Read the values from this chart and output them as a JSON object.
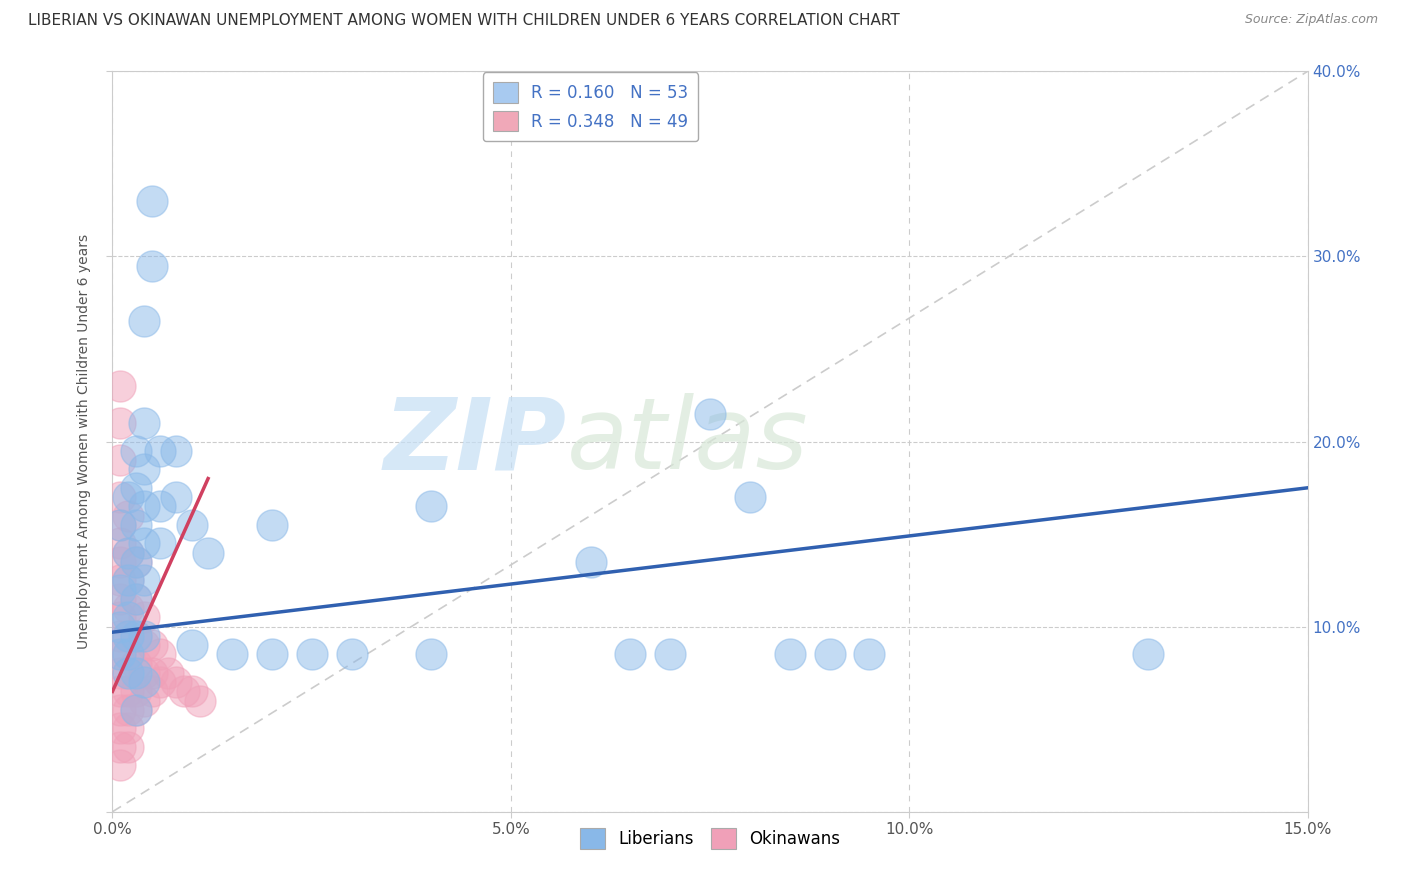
{
  "title": "LIBERIAN VS OKINAWAN UNEMPLOYMENT AMONG WOMEN WITH CHILDREN UNDER 6 YEARS CORRELATION CHART",
  "source": "Source: ZipAtlas.com",
  "ylabel": "Unemployment Among Women with Children Under 6 years",
  "xlim": [
    0,
    0.15
  ],
  "ylim": [
    0,
    0.4
  ],
  "xticks": [
    0.0,
    0.05,
    0.1,
    0.15
  ],
  "yticks": [
    0.0,
    0.1,
    0.2,
    0.3,
    0.4
  ],
  "xticklabels": [
    "0.0%",
    "5.0%",
    "10.0%",
    "15.0%"
  ],
  "right_yticklabels": [
    "",
    "10.0%",
    "20.0%",
    "30.0%",
    "40.0%"
  ],
  "legend_line1": "R = 0.160   N = 53",
  "legend_line2": "R = 0.348   N = 49",
  "legend_color1": "#a8caf0",
  "legend_color2": "#f0a8b8",
  "watermark_zip": "ZIP",
  "watermark_atlas": "atlas",
  "liberian_color": "#89b8e8",
  "okinawan_color": "#f0a0b8",
  "liberian_line_color": "#3060b0",
  "okinawan_line_color": "#d04060",
  "diag_color": "#cccccc",
  "background_color": "#ffffff",
  "grid_color": "#cccccc",
  "title_fontsize": 11,
  "label_fontsize": 10,
  "tick_fontsize": 11,
  "liberian_points": [
    [
      0.001,
      0.155
    ],
    [
      0.001,
      0.12
    ],
    [
      0.001,
      0.1
    ],
    [
      0.001,
      0.085
    ],
    [
      0.002,
      0.17
    ],
    [
      0.002,
      0.14
    ],
    [
      0.002,
      0.125
    ],
    [
      0.002,
      0.105
    ],
    [
      0.002,
      0.095
    ],
    [
      0.002,
      0.085
    ],
    [
      0.002,
      0.075
    ],
    [
      0.003,
      0.195
    ],
    [
      0.003,
      0.175
    ],
    [
      0.003,
      0.155
    ],
    [
      0.003,
      0.135
    ],
    [
      0.003,
      0.115
    ],
    [
      0.003,
      0.095
    ],
    [
      0.003,
      0.075
    ],
    [
      0.003,
      0.055
    ],
    [
      0.004,
      0.265
    ],
    [
      0.004,
      0.21
    ],
    [
      0.004,
      0.185
    ],
    [
      0.004,
      0.165
    ],
    [
      0.004,
      0.145
    ],
    [
      0.004,
      0.125
    ],
    [
      0.004,
      0.095
    ],
    [
      0.004,
      0.07
    ],
    [
      0.005,
      0.33
    ],
    [
      0.005,
      0.295
    ],
    [
      0.006,
      0.195
    ],
    [
      0.006,
      0.165
    ],
    [
      0.006,
      0.145
    ],
    [
      0.008,
      0.195
    ],
    [
      0.008,
      0.17
    ],
    [
      0.01,
      0.155
    ],
    [
      0.01,
      0.09
    ],
    [
      0.012,
      0.14
    ],
    [
      0.015,
      0.085
    ],
    [
      0.02,
      0.155
    ],
    [
      0.02,
      0.085
    ],
    [
      0.025,
      0.085
    ],
    [
      0.03,
      0.085
    ],
    [
      0.04,
      0.165
    ],
    [
      0.04,
      0.085
    ],
    [
      0.06,
      0.135
    ],
    [
      0.065,
      0.085
    ],
    [
      0.07,
      0.085
    ],
    [
      0.075,
      0.215
    ],
    [
      0.08,
      0.17
    ],
    [
      0.085,
      0.085
    ],
    [
      0.09,
      0.085
    ],
    [
      0.095,
      0.085
    ],
    [
      0.13,
      0.085
    ]
  ],
  "okinawan_points": [
    [
      0.001,
      0.23
    ],
    [
      0.001,
      0.21
    ],
    [
      0.001,
      0.19
    ],
    [
      0.001,
      0.17
    ],
    [
      0.001,
      0.155
    ],
    [
      0.001,
      0.145
    ],
    [
      0.001,
      0.135
    ],
    [
      0.001,
      0.125
    ],
    [
      0.001,
      0.115
    ],
    [
      0.001,
      0.105
    ],
    [
      0.001,
      0.095
    ],
    [
      0.001,
      0.085
    ],
    [
      0.001,
      0.075
    ],
    [
      0.001,
      0.065
    ],
    [
      0.001,
      0.055
    ],
    [
      0.001,
      0.045
    ],
    [
      0.001,
      0.035
    ],
    [
      0.001,
      0.025
    ],
    [
      0.002,
      0.16
    ],
    [
      0.002,
      0.14
    ],
    [
      0.002,
      0.125
    ],
    [
      0.002,
      0.11
    ],
    [
      0.002,
      0.095
    ],
    [
      0.002,
      0.085
    ],
    [
      0.002,
      0.075
    ],
    [
      0.002,
      0.065
    ],
    [
      0.002,
      0.055
    ],
    [
      0.002,
      0.045
    ],
    [
      0.002,
      0.035
    ],
    [
      0.003,
      0.135
    ],
    [
      0.003,
      0.115
    ],
    [
      0.003,
      0.095
    ],
    [
      0.003,
      0.08
    ],
    [
      0.003,
      0.065
    ],
    [
      0.003,
      0.055
    ],
    [
      0.004,
      0.105
    ],
    [
      0.004,
      0.09
    ],
    [
      0.004,
      0.075
    ],
    [
      0.004,
      0.06
    ],
    [
      0.005,
      0.09
    ],
    [
      0.005,
      0.075
    ],
    [
      0.005,
      0.065
    ],
    [
      0.006,
      0.085
    ],
    [
      0.006,
      0.07
    ],
    [
      0.007,
      0.075
    ],
    [
      0.008,
      0.07
    ],
    [
      0.009,
      0.065
    ],
    [
      0.01,
      0.065
    ],
    [
      0.011,
      0.06
    ]
  ],
  "lib_trend_x": [
    0.0,
    0.15
  ],
  "lib_trend_y": [
    0.097,
    0.175
  ],
  "ok_trend_x": [
    0.0,
    0.012
  ],
  "ok_trend_y": [
    0.065,
    0.18
  ]
}
